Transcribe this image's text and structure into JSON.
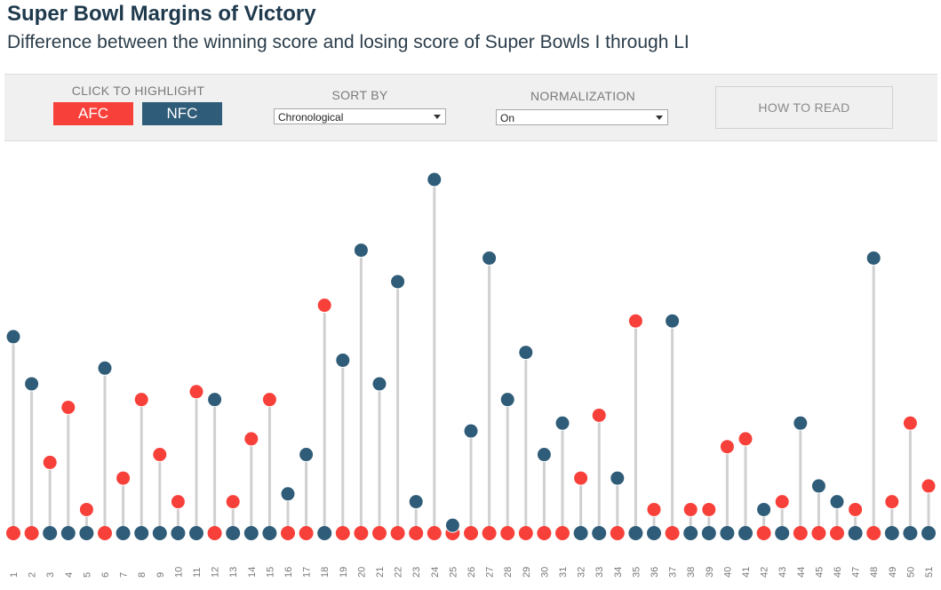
{
  "header": {
    "title": "Super Bowl Margins of Victory",
    "subtitle": "Difference between the winning score and losing score of Super Bowls I through LI"
  },
  "controls": {
    "highlight_label": "CLICK TO HIGHLIGHT",
    "afc_label": "AFC",
    "nfc_label": "NFC",
    "sort_label": "SORT BY",
    "sort_value": "Chronological",
    "normalization_label": "NORMALIZATION",
    "normalization_value": "On",
    "how_to_read_label": "HOW TO READ"
  },
  "colors": {
    "afc": "#f8403a",
    "nfc": "#2f5c78",
    "stem": "#d0d0d0"
  },
  "chart_data": {
    "type": "lollipop",
    "categories": [
      "1",
      "2",
      "3",
      "4",
      "5",
      "6",
      "7",
      "8",
      "9",
      "10",
      "11",
      "12",
      "13",
      "14",
      "15",
      "16",
      "17",
      "18",
      "19",
      "20",
      "21",
      "22",
      "23",
      "24",
      "25",
      "26",
      "27",
      "28",
      "29",
      "30",
      "31",
      "32",
      "33",
      "34",
      "35",
      "36",
      "37",
      "38",
      "39",
      "40",
      "41",
      "42",
      "43",
      "44",
      "45",
      "46",
      "47",
      "48",
      "49",
      "50",
      "51"
    ],
    "margins": [
      25,
      19,
      9,
      16,
      3,
      21,
      7,
      17,
      10,
      4,
      18,
      17,
      4,
      12,
      17,
      5,
      10,
      29,
      22,
      36,
      19,
      32,
      4,
      45,
      1,
      13,
      35,
      17,
      23,
      10,
      14,
      7,
      15,
      7,
      27,
      3,
      27,
      3,
      3,
      11,
      12,
      3,
      4,
      14,
      6,
      4,
      3,
      35,
      4,
      14,
      6
    ],
    "winner_conference": [
      "NFC",
      "NFC",
      "AFC",
      "AFC",
      "AFC",
      "NFC",
      "AFC",
      "AFC",
      "AFC",
      "AFC",
      "AFC",
      "NFC",
      "AFC",
      "AFC",
      "AFC",
      "NFC",
      "NFC",
      "AFC",
      "NFC",
      "NFC",
      "NFC",
      "NFC",
      "NFC",
      "NFC",
      "NFC",
      "NFC",
      "NFC",
      "NFC",
      "NFC",
      "NFC",
      "NFC",
      "AFC",
      "AFC",
      "NFC",
      "AFC",
      "AFC",
      "NFC",
      "AFC",
      "AFC",
      "AFC",
      "AFC",
      "NFC",
      "AFC",
      "NFC",
      "NFC",
      "NFC",
      "AFC",
      "NFC",
      "AFC",
      "AFC",
      "AFC"
    ],
    "loser_conference": [
      "AFC",
      "AFC",
      "NFC",
      "NFC",
      "NFC",
      "AFC",
      "NFC",
      "NFC",
      "NFC",
      "NFC",
      "NFC",
      "AFC",
      "NFC",
      "NFC",
      "NFC",
      "AFC",
      "AFC",
      "NFC",
      "AFC",
      "AFC",
      "AFC",
      "AFC",
      "AFC",
      "AFC",
      "AFC",
      "AFC",
      "AFC",
      "AFC",
      "AFC",
      "AFC",
      "AFC",
      "NFC",
      "NFC",
      "AFC",
      "NFC",
      "NFC",
      "AFC",
      "NFC",
      "NFC",
      "NFC",
      "NFC",
      "AFC",
      "NFC",
      "AFC",
      "AFC",
      "AFC",
      "NFC",
      "AFC",
      "NFC",
      "NFC",
      "NFC"
    ],
    "ylim": [
      0,
      47
    ],
    "xlabel": "",
    "ylabel": ""
  }
}
